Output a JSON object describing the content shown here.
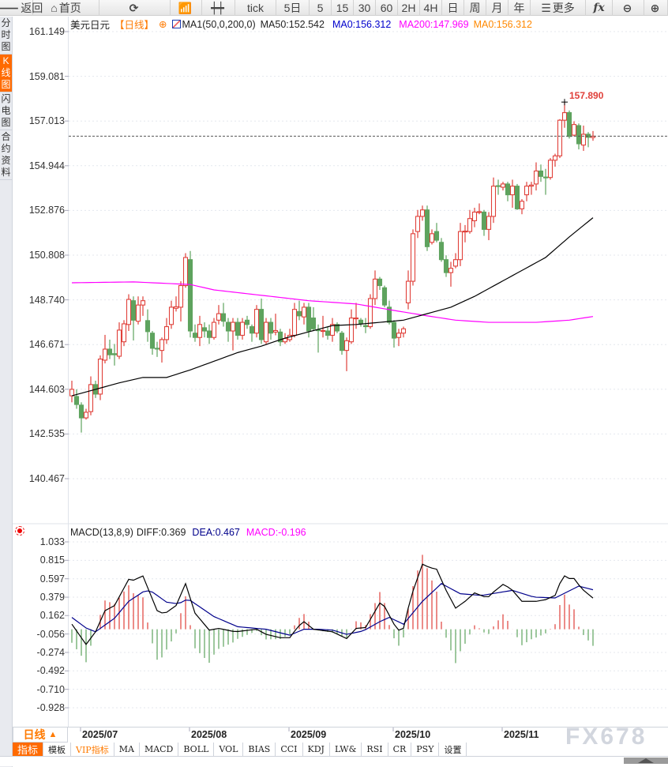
{
  "toolbar": {
    "items": [
      {
        "label": "返回",
        "icon": "back-arrow-icon",
        "w": 42
      },
      {
        "label": "首页",
        "icon": "home-icon",
        "w": 84
      },
      {
        "label": "",
        "icon": "refresh-icon",
        "w": 90
      },
      {
        "label": "",
        "icon": "bar-chart-icon",
        "w": 40
      },
      {
        "label": "",
        "icon": "candlestick-icon",
        "w": 42
      },
      {
        "label": "tick",
        "icon": "",
        "w": 52
      },
      {
        "label": "5日",
        "icon": "",
        "w": 42
      },
      {
        "label": "5",
        "icon": "",
        "w": 28
      },
      {
        "label": "15",
        "icon": "",
        "w": 28
      },
      {
        "label": "30",
        "icon": "",
        "w": 28
      },
      {
        "label": "60",
        "icon": "",
        "w": 28
      },
      {
        "label": "2H",
        "icon": "",
        "w": 28
      },
      {
        "label": "4H",
        "icon": "",
        "w": 28
      },
      {
        "label": "日",
        "icon": "",
        "w": 28
      },
      {
        "label": "周",
        "icon": "",
        "w": 28
      },
      {
        "label": "月",
        "icon": "",
        "w": 28
      },
      {
        "label": "年",
        "icon": "",
        "w": 28
      },
      {
        "label": "更多",
        "icon": "menu-icon",
        "w": 70
      },
      {
        "label": "fx",
        "icon": "formula-icon",
        "w": 34
      },
      {
        "label": "",
        "icon": "zoom-out-icon",
        "w": 40
      },
      {
        "label": "",
        "icon": "zoom-in-icon",
        "w": 30
      }
    ]
  },
  "left_tabs": [
    {
      "label": "分时图",
      "active": false
    },
    {
      "label": "K线图",
      "active": true
    },
    {
      "label": "闪电图",
      "active": false
    },
    {
      "label": "合约资料",
      "active": false
    }
  ],
  "header": {
    "symbol": "美元日元",
    "period": "【日线】",
    "ma_name": "MA1(50,0,200,0)",
    "ma50": "MA50:152.542",
    "ma0a": "MA0:156.312",
    "ma200": "MA200:147.969",
    "ma0b": "MA0:156.312"
  },
  "macd_header": {
    "name": "MACD(13,8,9)",
    "diff": "DIFF:0.369",
    "dea": "DEA:0.467",
    "macd": "MACD:-0.196"
  },
  "colors": {
    "up": "#e0403a",
    "down": "#5ea35e",
    "ma50": "#000000",
    "ma200": "#ff00ff",
    "dea": "#00008b",
    "diff": "#000000",
    "last_price_line": "#1a73e8",
    "orange": "#ff7a00"
  },
  "chart_data": [
    {
      "type": "candlestick",
      "y_ticks": [
        "161.149",
        "159.081",
        "157.013",
        "154.944",
        "152.876",
        "150.808",
        "148.740",
        "146.671",
        "144.603",
        "142.535",
        "140.467"
      ],
      "ylim": [
        140.467,
        161.149
      ],
      "x_ticks": [
        "2025/07",
        "2025/08",
        "2025/09",
        "2025/10",
        "2025/11"
      ],
      "high_label": "157.890",
      "last_close": 156.31,
      "ohlc": [
        [
          144.3,
          145.0,
          144.0,
          144.6
        ],
        [
          144.27,
          144.6,
          143.7,
          143.9
        ],
        [
          143.87,
          144.0,
          142.6,
          143.28
        ],
        [
          143.28,
          143.7,
          143.2,
          143.54
        ],
        [
          143.57,
          145.2,
          143.4,
          144.82
        ],
        [
          144.82,
          145.0,
          144.2,
          144.38
        ],
        [
          144.38,
          146.17,
          144.1,
          146.0
        ],
        [
          145.95,
          147.12,
          145.8,
          146.46
        ],
        [
          146.46,
          146.9,
          146.0,
          146.2
        ],
        [
          146.25,
          146.7,
          145.7,
          146.2
        ],
        [
          146.13,
          147.7,
          146.0,
          147.34
        ],
        [
          146.8,
          147.8,
          146.6,
          147.63
        ],
        [
          147.6,
          149.0,
          147.3,
          148.76
        ],
        [
          148.7,
          148.9,
          146.86,
          147.8
        ],
        [
          147.75,
          148.9,
          147.6,
          148.5
        ],
        [
          148.5,
          148.9,
          148.0,
          148.7
        ],
        [
          147.78,
          148.3,
          146.8,
          147.27
        ],
        [
          147.2,
          147.3,
          146.2,
          146.5
        ],
        [
          146.5,
          146.8,
          146.1,
          146.47
        ],
        [
          146.4,
          147.0,
          145.84,
          146.9
        ],
        [
          146.9,
          147.9,
          146.7,
          147.5
        ],
        [
          147.6,
          148.7,
          147.4,
          148.4
        ],
        [
          148.35,
          148.9,
          148.2,
          148.42
        ],
        [
          148.4,
          149.6,
          147.74,
          149.4
        ],
        [
          149.4,
          150.9,
          149.3,
          150.7
        ],
        [
          150.6,
          151.0,
          147.0,
          147.3
        ],
        [
          147.2,
          147.6,
          146.8,
          147.0
        ],
        [
          147.0,
          148.0,
          146.6,
          147.6
        ],
        [
          147.45,
          147.7,
          147.0,
          147.3
        ],
        [
          147.3,
          147.6,
          146.7,
          147.0
        ],
        [
          147.0,
          147.9,
          146.9,
          147.7
        ],
        [
          147.8,
          148.5,
          147.6,
          148.1
        ],
        [
          148.1,
          148.6,
          147.5,
          147.75
        ],
        [
          147.7,
          147.9,
          146.8,
          147.3
        ],
        [
          147.3,
          147.9,
          146.4,
          147.7
        ],
        [
          147.7,
          147.9,
          146.9,
          147.1
        ],
        [
          147.1,
          147.9,
          146.9,
          147.7
        ],
        [
          147.8,
          148.0,
          147.4,
          147.6
        ],
        [
          147.5,
          147.6,
          146.8,
          147.2
        ],
        [
          147.2,
          148.5,
          147.0,
          148.3
        ],
        [
          148.3,
          148.8,
          146.7,
          146.9
        ],
        [
          146.8,
          147.9,
          146.7,
          147.7
        ],
        [
          147.7,
          147.9,
          146.9,
          147.2
        ],
        [
          147.25,
          148.1,
          147.1,
          147.32
        ],
        [
          147.25,
          147.4,
          146.6,
          146.8
        ],
        [
          146.8,
          147.2,
          146.7,
          146.95
        ],
        [
          146.9,
          147.4,
          146.8,
          147.1
        ],
        [
          147.1,
          148.6,
          147.0,
          148.3
        ],
        [
          148.2,
          148.7,
          147.8,
          148.0
        ],
        [
          147.95,
          148.6,
          147.6,
          148.4
        ],
        [
          148.4,
          148.6,
          147.0,
          147.3
        ],
        [
          147.9,
          148.4,
          147.3,
          147.4
        ],
        [
          147.35,
          147.6,
          146.3,
          147.32
        ],
        [
          147.28,
          148.0,
          147.0,
          147.32
        ],
        [
          147.3,
          147.5,
          146.9,
          147.1
        ],
        [
          147.1,
          147.9,
          146.8,
          147.6
        ],
        [
          147.6,
          147.7,
          147.2,
          147.3
        ],
        [
          147.2,
          147.3,
          146.2,
          146.4
        ],
        [
          146.4,
          147.0,
          145.44,
          146.85
        ],
        [
          146.8,
          148.3,
          146.7,
          147.9
        ],
        [
          147.88,
          148.6,
          147.4,
          147.9
        ],
        [
          147.8,
          147.9,
          147.5,
          147.65
        ],
        [
          147.55,
          147.9,
          147.2,
          147.5
        ],
        [
          147.5,
          149.0,
          147.4,
          148.8
        ],
        [
          148.8,
          150.1,
          148.5,
          149.7
        ],
        [
          149.7,
          149.8,
          149.2,
          149.4
        ],
        [
          149.3,
          149.4,
          148.4,
          148.5
        ],
        [
          148.4,
          148.7,
          147.6,
          147.7
        ],
        [
          147.7,
          147.8,
          146.53,
          146.97
        ],
        [
          147.0,
          147.4,
          146.6,
          147.2
        ],
        [
          147.2,
          147.5,
          147.0,
          147.4
        ],
        [
          148.6,
          150.1,
          148.3,
          149.6
        ],
        [
          149.6,
          152.0,
          149.4,
          151.8
        ],
        [
          151.9,
          152.9,
          151.6,
          152.6
        ],
        [
          152.6,
          153.1,
          152.4,
          152.9
        ],
        [
          152.9,
          153.1,
          151.0,
          151.2
        ],
        [
          151.4,
          152.0,
          151.3,
          151.8
        ],
        [
          151.9,
          152.3,
          151.4,
          151.5
        ],
        [
          151.4,
          151.6,
          150.5,
          150.6
        ],
        [
          150.6,
          150.8,
          149.8,
          150.0
        ],
        [
          150.0,
          150.5,
          149.35,
          150.2
        ],
        [
          150.3,
          150.9,
          150.2,
          150.6
        ],
        [
          150.6,
          152.3,
          150.3,
          151.9
        ],
        [
          151.88,
          152.2,
          151.4,
          151.92
        ],
        [
          151.9,
          152.9,
          151.8,
          152.5
        ],
        [
          152.4,
          153.0,
          152.1,
          152.8
        ],
        [
          152.78,
          153.2,
          152.7,
          152.82
        ],
        [
          152.8,
          152.9,
          151.7,
          152.0
        ],
        [
          152.0,
          152.8,
          151.5,
          152.6
        ],
        [
          152.6,
          154.4,
          152.3,
          154.0
        ],
        [
          154.02,
          154.3,
          153.6,
          154.0
        ],
        [
          153.95,
          154.2,
          153.8,
          154.1
        ],
        [
          154.1,
          154.2,
          153.3,
          153.6
        ],
        [
          153.6,
          154.3,
          153.0,
          154.0
        ],
        [
          154.0,
          154.1,
          152.9,
          152.95
        ],
        [
          152.95,
          153.4,
          152.7,
          153.3
        ],
        [
          153.6,
          154.2,
          153.3,
          154.0
        ],
        [
          154.0,
          154.2,
          153.6,
          154.05
        ],
        [
          154.1,
          155.1,
          153.8,
          154.7
        ],
        [
          154.7,
          155.0,
          154.2,
          154.45
        ],
        [
          154.42,
          154.8,
          153.6,
          154.4
        ],
        [
          154.4,
          155.3,
          154.3,
          155.2
        ],
        [
          155.2,
          155.5,
          154.9,
          155.4
        ],
        [
          155.4,
          157.1,
          155.3,
          157.05
        ],
        [
          157.05,
          157.89,
          156.7,
          157.4
        ],
        [
          157.4,
          157.5,
          156.2,
          156.3
        ],
        [
          156.36,
          157.0,
          156.3,
          156.85
        ],
        [
          156.8,
          156.9,
          155.7,
          155.96
        ],
        [
          155.9,
          156.8,
          155.63,
          156.4
        ],
        [
          156.4,
          156.5,
          155.8,
          156.26
        ],
        [
          156.25,
          156.55,
          156.1,
          156.31
        ]
      ],
      "ma50": [
        [
          0,
          144.3
        ],
        [
          10,
          144.9
        ],
        [
          15,
          145.15
        ],
        [
          20,
          145.15
        ],
        [
          25,
          145.5
        ],
        [
          30,
          145.9
        ],
        [
          35,
          146.3
        ],
        [
          40,
          146.6
        ],
        [
          45,
          146.97
        ],
        [
          50,
          147.26
        ],
        [
          55,
          147.55
        ],
        [
          60,
          147.6
        ],
        [
          65,
          147.7
        ],
        [
          70,
          147.8
        ],
        [
          75,
          148.1
        ],
        [
          80,
          148.4
        ],
        [
          85,
          148.9
        ],
        [
          90,
          149.5
        ],
        [
          95,
          150.1
        ],
        [
          100,
          150.7
        ],
        [
          105,
          151.65
        ],
        [
          110,
          152.54
        ]
      ],
      "ma200": [
        [
          0,
          149.53
        ],
        [
          13,
          149.57
        ],
        [
          25,
          149.45
        ],
        [
          30,
          149.2
        ],
        [
          40,
          148.95
        ],
        [
          50,
          148.7
        ],
        [
          60,
          148.55
        ],
        [
          68,
          148.25
        ],
        [
          75,
          148.0
        ],
        [
          81,
          147.8
        ],
        [
          88,
          147.7
        ],
        [
          98,
          147.7
        ],
        [
          105,
          147.8
        ],
        [
          110,
          147.97
        ]
      ]
    },
    {
      "type": "macd",
      "y_ticks": [
        "1.033",
        "0.815",
        "0.597",
        "0.379",
        "0.162",
        "-0.056",
        "-0.274",
        "-0.492",
        "-0.710",
        "-0.928"
      ],
      "ylim": [
        -0.928,
        1.033
      ],
      "diff": [
        [
          0,
          0.06
        ],
        [
          3,
          -0.18
        ],
        [
          5,
          -0.03
        ],
        [
          7,
          0.22
        ],
        [
          9,
          0.28
        ],
        [
          12,
          0.59
        ],
        [
          13,
          0.58
        ],
        [
          15,
          0.63
        ],
        [
          18,
          0.22
        ],
        [
          19.5,
          0.18
        ],
        [
          22,
          0.28
        ],
        [
          24,
          0.54
        ],
        [
          26,
          0.19
        ],
        [
          29,
          -0.01
        ],
        [
          31,
          0.01
        ],
        [
          34.5,
          -0.03
        ],
        [
          39,
          0.0
        ],
        [
          41,
          -0.06
        ],
        [
          44,
          -0.1
        ],
        [
          46,
          -0.1
        ],
        [
          47.7,
          0.03
        ],
        [
          49,
          0.09
        ],
        [
          51,
          0.0
        ],
        [
          55,
          -0.03
        ],
        [
          58,
          -0.11
        ],
        [
          60,
          0.01
        ],
        [
          62,
          0.02
        ],
        [
          65,
          0.31
        ],
        [
          66,
          0.27
        ],
        [
          68,
          0.06
        ],
        [
          69.7,
          -0.06
        ],
        [
          71.5,
          0.37
        ],
        [
          74,
          0.77
        ],
        [
          75.5,
          0.73
        ],
        [
          77,
          0.71
        ],
        [
          79,
          0.46
        ],
        [
          81,
          0.25
        ],
        [
          83,
          0.33
        ],
        [
          85,
          0.43
        ],
        [
          87.7,
          0.37
        ],
        [
          89,
          0.44
        ],
        [
          91,
          0.53
        ],
        [
          92.7,
          0.48
        ],
        [
          95,
          0.33
        ],
        [
          98,
          0.33
        ],
        [
          100,
          0.35
        ],
        [
          102,
          0.4
        ],
        [
          103.7,
          0.64
        ],
        [
          105,
          0.6
        ],
        [
          106,
          0.6
        ],
        [
          107.6,
          0.48
        ],
        [
          110,
          0.369
        ]
      ],
      "dea": [
        [
          0,
          0.14
        ],
        [
          3,
          0.015
        ],
        [
          5,
          -0.03
        ],
        [
          9,
          0.13
        ],
        [
          12,
          0.33
        ],
        [
          15.5,
          0.46
        ],
        [
          17,
          0.44
        ],
        [
          20,
          0.32
        ],
        [
          22.5,
          0.3
        ],
        [
          24.5,
          0.36
        ],
        [
          30,
          0.15
        ],
        [
          35,
          0.03
        ],
        [
          41,
          0.0
        ],
        [
          46,
          -0.07
        ],
        [
          49,
          0.0
        ],
        [
          52,
          0.0
        ],
        [
          55,
          -0.01
        ],
        [
          58,
          -0.06
        ],
        [
          61.5,
          -0.02
        ],
        [
          65,
          0.09
        ],
        [
          67,
          0.14
        ],
        [
          70,
          0.06
        ],
        [
          74,
          0.33
        ],
        [
          78,
          0.54
        ],
        [
          82,
          0.42
        ],
        [
          86.5,
          0.4
        ],
        [
          93,
          0.46
        ],
        [
          97.5,
          0.38
        ],
        [
          102,
          0.37
        ],
        [
          107,
          0.51
        ],
        [
          110,
          0.467
        ]
      ]
    }
  ],
  "bottom": {
    "period_label": "日线",
    "period_icon": "▲",
    "tabs": [
      "指标",
      "模板",
      "VIP指标",
      "MA",
      "MACD",
      "BOLL",
      "VOL",
      "BIAS",
      "CCI",
      "KDJ",
      "LW&",
      "RSI",
      "CR",
      "PSY",
      "设置"
    ],
    "watermark": "FX678"
  }
}
